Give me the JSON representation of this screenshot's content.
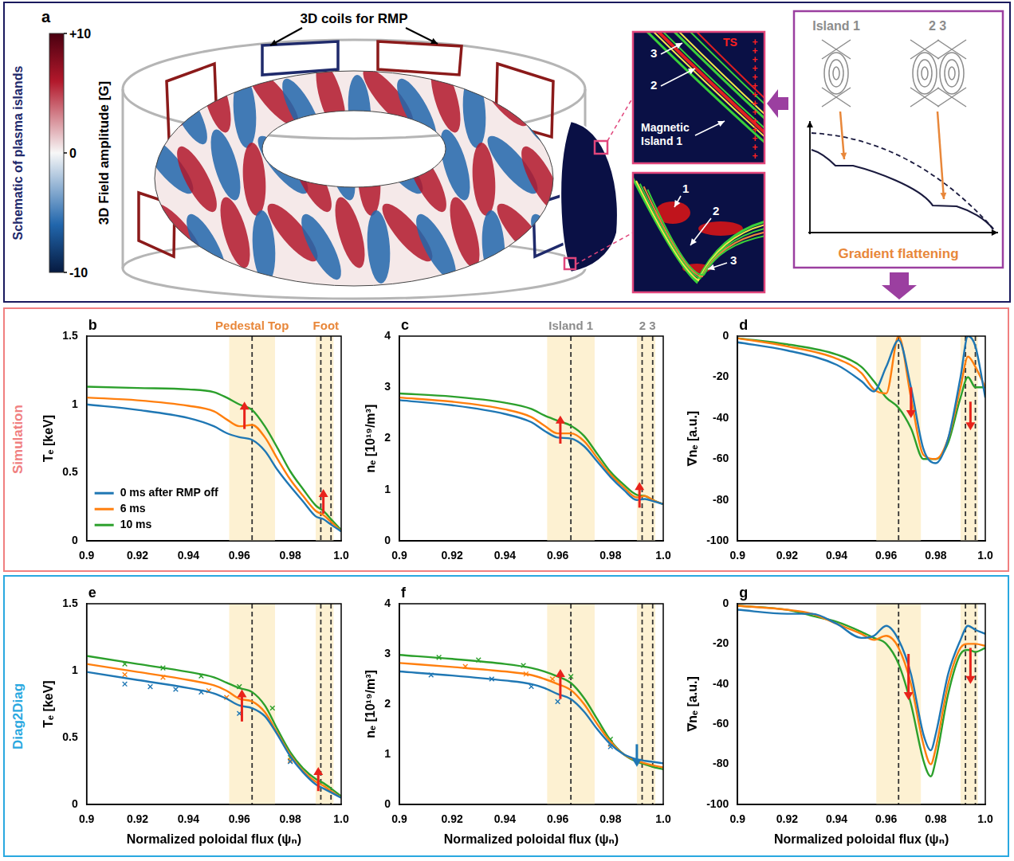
{
  "schematic": {
    "row_label": "Schematic of plasma islands",
    "row_color": "#1f2a6b",
    "letter": "a",
    "colorbar": {
      "title": "3D Field amplitude [G]",
      "range": [
        -10,
        10
      ],
      "ticks": [
        {
          "value": 10,
          "label": "+10"
        },
        0,
        -10
      ]
    },
    "coils_label": "3D coils for RMP",
    "inset_top": {
      "labels": [
        "3",
        "2"
      ],
      "island_label": "Magnetic Island 1",
      "ts_label": "TS"
    },
    "inset_bottom": {
      "labels": [
        "1",
        "2",
        "3"
      ]
    },
    "concept": {
      "island_labels": [
        "Island 1",
        "2 3"
      ],
      "caption": "Gradient flattening"
    }
  },
  "rows": [
    {
      "id": "simulation",
      "label": "Simulation",
      "color": "#f08080"
    },
    {
      "id": "diag2diag",
      "label": "Diag2Diag",
      "color": "#29a8e0"
    }
  ],
  "chart_data": [
    {
      "letter": "b",
      "row": "simulation",
      "type": "line",
      "ylabel": "Tₑ [keV]",
      "x": [
        0.9,
        0.92,
        0.94,
        0.95,
        0.955,
        0.96,
        0.965,
        0.97,
        0.975,
        0.98,
        0.985,
        0.99,
        0.993,
        0.996,
        1
      ],
      "xlim": [
        0.9,
        1
      ],
      "xticks": [
        0.9,
        0.92,
        0.94,
        0.96,
        0.98,
        {
          "value": 1,
          "label": "1.0"
        }
      ],
      "ylim": [
        0,
        1.5
      ],
      "yticks": [
        0,
        0.5,
        1,
        1.5
      ],
      "grid": false,
      "legend": "lower left",
      "series": [
        {
          "name": "0 ms after RMP off",
          "color": "#1f77b4",
          "values": [
            1.0,
            0.96,
            0.9,
            0.84,
            0.79,
            0.76,
            0.74,
            0.66,
            0.52,
            0.4,
            0.29,
            0.18,
            0.16,
            0.12,
            0.07
          ]
        },
        {
          "name": "6 ms",
          "color": "#ff7f0e",
          "values": [
            1.05,
            1.03,
            0.99,
            0.95,
            0.89,
            0.84,
            0.85,
            0.76,
            0.6,
            0.45,
            0.33,
            0.22,
            0.19,
            0.14,
            0.07
          ]
        },
        {
          "name": "10 ms",
          "color": "#2ca02c",
          "values": [
            1.13,
            1.12,
            1.11,
            1.09,
            1.05,
            1.0,
            0.96,
            0.84,
            0.68,
            0.51,
            0.38,
            0.26,
            0.22,
            0.16,
            0.08
          ]
        }
      ],
      "shaded": [
        [
          0.956,
          0.974
        ],
        [
          0.99,
          0.997
        ]
      ],
      "vlines": [
        0.965,
        0.992,
        0.996
      ],
      "top_labels": [
        {
          "text": "Pedestal Top",
          "x": 0.965,
          "color": "#e8873a"
        },
        {
          "text": "Foot",
          "x": 0.994,
          "color": "#e8873a"
        }
      ],
      "arrows": [
        {
          "x": 0.962,
          "from": 0.82,
          "to": 1.02,
          "color": "#e8231b"
        },
        {
          "x": 0.993,
          "from": 0.2,
          "to": 0.38,
          "color": "#e8231b"
        }
      ]
    },
    {
      "letter": "c",
      "row": "simulation",
      "type": "line",
      "ylabel": "nₑ [10¹⁹/m³]",
      "x": [
        0.9,
        0.92,
        0.94,
        0.95,
        0.955,
        0.96,
        0.965,
        0.97,
        0.975,
        0.98,
        0.985,
        0.99,
        0.993,
        0.996,
        1
      ],
      "xlim": [
        0.9,
        1
      ],
      "xticks": [
        0.9,
        0.92,
        0.94,
        0.96,
        0.98,
        {
          "value": 1,
          "label": "1.0"
        }
      ],
      "ylim": [
        0,
        4
      ],
      "yticks": [
        0,
        1,
        2,
        3,
        4
      ],
      "grid": false,
      "series": [
        {
          "color": "#1f77b4",
          "values": [
            2.75,
            2.65,
            2.48,
            2.32,
            2.15,
            2.02,
            2.0,
            1.85,
            1.55,
            1.25,
            1.0,
            0.8,
            0.82,
            0.78,
            0.72
          ]
        },
        {
          "color": "#ff7f0e",
          "values": [
            2.8,
            2.72,
            2.57,
            2.42,
            2.25,
            2.1,
            2.1,
            1.95,
            1.62,
            1.3,
            1.05,
            0.85,
            0.88,
            0.8,
            0.72
          ]
        },
        {
          "color": "#2ca02c",
          "values": [
            2.88,
            2.82,
            2.7,
            2.58,
            2.45,
            2.35,
            2.25,
            2.05,
            1.7,
            1.35,
            1.1,
            0.9,
            0.88,
            0.8,
            0.72
          ]
        }
      ],
      "shaded": [
        [
          0.956,
          0.974
        ],
        [
          0.99,
          0.997
        ]
      ],
      "vlines": [
        0.965,
        0.992,
        0.996
      ],
      "top_labels": [
        {
          "text": "Island 1",
          "x": 0.965,
          "color": "#8c8c8c"
        },
        {
          "text": "2 3",
          "x": 0.994,
          "color": "#8c8c8c"
        }
      ],
      "arrows": [
        {
          "x": 0.961,
          "from": 1.9,
          "to": 2.45,
          "color": "#e8231b"
        },
        {
          "x": 0.991,
          "from": 0.65,
          "to": 1.15,
          "color": "#e8231b"
        }
      ]
    },
    {
      "letter": "d",
      "row": "simulation",
      "type": "line",
      "ylabel": "∇nₑ [a.u.]",
      "x": [
        0.9,
        0.92,
        0.94,
        0.95,
        0.955,
        0.96,
        0.965,
        0.97,
        0.975,
        0.98,
        0.985,
        0.99,
        0.993,
        0.996,
        1
      ],
      "xlim": [
        0.9,
        1
      ],
      "xticks": [
        0.9,
        0.92,
        0.94,
        0.96,
        0.98,
        {
          "value": 1,
          "label": "1.0"
        }
      ],
      "ylim": [
        -100,
        0
      ],
      "yticks": [
        -100,
        -80,
        -60,
        -40,
        -20,
        0
      ],
      "grid": false,
      "series": [
        {
          "color": "#1f77b4",
          "values": [
            -3,
            -7,
            -14,
            -22,
            -27,
            -15,
            -2,
            -25,
            -55,
            -62,
            -50,
            -20,
            0,
            -5,
            -30
          ]
        },
        {
          "color": "#ff7f0e",
          "values": [
            -1,
            -5,
            -11,
            -18,
            -26,
            -28,
            0,
            -30,
            -58,
            -60,
            -50,
            -25,
            -10,
            -15,
            -25
          ]
        },
        {
          "color": "#2ca02c",
          "values": [
            -1,
            -4,
            -9,
            -15,
            -22,
            -30,
            -35,
            -45,
            -60,
            -60,
            -52,
            -30,
            -20,
            -25,
            -25
          ]
        }
      ],
      "shaded": [
        [
          0.956,
          0.974
        ],
        [
          0.99,
          0.997
        ]
      ],
      "vlines": [
        0.965,
        0.992,
        0.996
      ],
      "arrows": [
        {
          "x": 0.97,
          "from": -25,
          "to": -40,
          "color": "#e8231b"
        },
        {
          "x": 0.994,
          "from": -32,
          "to": -46,
          "color": "#e8231b"
        }
      ]
    },
    {
      "letter": "e",
      "row": "diag2diag",
      "type": "line",
      "ylabel": "Tₑ [keV]",
      "xlabel": "Normalized poloidal flux (ψₙ)",
      "x": [
        0.9,
        0.92,
        0.94,
        0.95,
        0.955,
        0.96,
        0.965,
        0.97,
        0.975,
        0.98,
        0.985,
        0.99,
        0.993,
        0.996,
        1
      ],
      "xlim": [
        0.9,
        1
      ],
      "xticks": [
        0.9,
        0.92,
        0.94,
        0.96,
        0.98,
        {
          "value": 1,
          "label": "1.0"
        }
      ],
      "ylim": [
        0,
        1.5
      ],
      "yticks": [
        0,
        0.5,
        1,
        1.5
      ],
      "grid": false,
      "series": [
        {
          "color": "#1f77b4",
          "values": [
            0.99,
            0.93,
            0.87,
            0.83,
            0.79,
            0.74,
            0.72,
            0.66,
            0.52,
            0.36,
            0.24,
            0.15,
            0.12,
            0.09,
            0.05
          ],
          "measured": {
            "marker": "x",
            "x": [
              0.915,
              0.925,
              0.935,
              0.945,
              0.96,
              0.98
            ],
            "y": [
              0.9,
              0.88,
              0.86,
              0.84,
              0.68,
              0.32
            ]
          }
        },
        {
          "color": "#ff7f0e",
          "values": [
            1.05,
            0.99,
            0.93,
            0.89,
            0.85,
            0.79,
            0.77,
            0.69,
            0.53,
            0.37,
            0.25,
            0.17,
            0.14,
            0.1,
            0.05
          ],
          "measured": {
            "marker": "x",
            "x": [
              0.915,
              0.93,
              0.948,
              0.955,
              0.98
            ],
            "y": [
              0.97,
              0.95,
              0.85,
              0.8,
              0.33
            ]
          }
        },
        {
          "color": "#2ca02c",
          "values": [
            1.11,
            1.05,
            0.99,
            0.95,
            0.91,
            0.87,
            0.84,
            0.74,
            0.56,
            0.39,
            0.27,
            0.19,
            0.16,
            0.12,
            0.06
          ],
          "measured": {
            "marker": "x",
            "x": [
              0.915,
              0.93,
              0.945,
              0.96,
              0.973,
              0.98
            ],
            "y": [
              1.05,
              1.02,
              0.96,
              0.88,
              0.72,
              0.35
            ]
          }
        }
      ],
      "shaded": [
        [
          0.956,
          0.974
        ],
        [
          0.99,
          0.997
        ]
      ],
      "vlines": [
        0.965,
        0.992,
        0.996
      ],
      "arrows": [
        {
          "x": 0.961,
          "from": 0.62,
          "to": 0.86,
          "color": "#e8231b"
        },
        {
          "x": 0.991,
          "from": 0.1,
          "to": 0.28,
          "color": "#e8231b"
        }
      ]
    },
    {
      "letter": "f",
      "row": "diag2diag",
      "type": "line",
      "ylabel": "nₑ [10¹⁹/m³]",
      "xlabel": "Normalized poloidal flux (ψₙ)",
      "x": [
        0.9,
        0.92,
        0.94,
        0.95,
        0.955,
        0.96,
        0.965,
        0.97,
        0.975,
        0.98,
        0.985,
        0.99,
        0.993,
        0.996,
        1
      ],
      "xlim": [
        0.9,
        1
      ],
      "xticks": [
        0.9,
        0.92,
        0.94,
        0.96,
        0.98,
        {
          "value": 1,
          "label": "1.0"
        }
      ],
      "ylim": [
        0,
        4
      ],
      "yticks": [
        0,
        1,
        2,
        3,
        4
      ],
      "grid": false,
      "series": [
        {
          "color": "#1f77b4",
          "values": [
            2.65,
            2.57,
            2.47,
            2.4,
            2.32,
            2.2,
            2.1,
            1.85,
            1.5,
            1.2,
            1.0,
            0.9,
            0.87,
            0.85,
            0.82
          ],
          "measured": {
            "marker": "x",
            "x": [
              0.912,
              0.935,
              0.95,
              0.96,
              0.98
            ],
            "y": [
              2.58,
              2.5,
              2.35,
              2.05,
              1.15
            ]
          }
        },
        {
          "color": "#ff7f0e",
          "values": [
            2.82,
            2.74,
            2.65,
            2.58,
            2.5,
            2.4,
            2.28,
            2.0,
            1.6,
            1.25,
            1.0,
            0.87,
            0.82,
            0.78,
            0.74
          ],
          "measured": {
            "marker": "x",
            "x": [
              0.925,
              0.948,
              0.958,
              0.98
            ],
            "y": [
              2.75,
              2.6,
              2.5,
              1.2
            ]
          }
        },
        {
          "color": "#2ca02c",
          "values": [
            2.98,
            2.9,
            2.8,
            2.72,
            2.65,
            2.55,
            2.42,
            2.12,
            1.7,
            1.28,
            1.0,
            0.85,
            0.8,
            0.75,
            0.7
          ],
          "measured": {
            "marker": "x",
            "x": [
              0.915,
              0.93,
              0.947,
              0.965,
              0.98
            ],
            "y": [
              2.93,
              2.88,
              2.77,
              2.55,
              1.3
            ]
          }
        }
      ],
      "shaded": [
        [
          0.956,
          0.974
        ],
        [
          0.99,
          0.997
        ]
      ],
      "vlines": [
        0.965,
        0.992,
        0.996
      ],
      "arrows": [
        {
          "x": 0.961,
          "from": 2.1,
          "to": 2.7,
          "color": "#e8231b"
        },
        {
          "x": 0.99,
          "from": 1.2,
          "to": 0.75,
          "color": "#1f77b4"
        }
      ]
    },
    {
      "letter": "g",
      "row": "diag2diag",
      "type": "line",
      "ylabel": "∇nₑ [a.u.]",
      "xlabel": "Normalized poloidal flux (ψₙ)",
      "x": [
        0.9,
        0.92,
        0.93,
        0.94,
        0.95,
        0.955,
        0.96,
        0.965,
        0.97,
        0.975,
        0.978,
        0.98,
        0.985,
        0.99,
        0.993,
        0.996,
        1
      ],
      "xlim": [
        0.9,
        1
      ],
      "xticks": [
        0.9,
        0.92,
        0.94,
        0.96,
        0.98,
        {
          "value": 1,
          "label": "1.0"
        }
      ],
      "ylim": [
        -100,
        0
      ],
      "yticks": [
        -100,
        -80,
        -60,
        -40,
        -20,
        0
      ],
      "grid": false,
      "series": [
        {
          "color": "#1f77b4",
          "values": [
            -3,
            -5,
            -5,
            -10,
            -17,
            -16,
            -11,
            -18,
            -35,
            -65,
            -73,
            -65,
            -35,
            -18,
            -11,
            -13,
            -15
          ]
        },
        {
          "color": "#ff7f0e",
          "values": [
            -1,
            -3,
            -5,
            -10,
            -15,
            -18,
            -16,
            -22,
            -40,
            -70,
            -80,
            -72,
            -40,
            -22,
            -20,
            -20,
            -21
          ]
        },
        {
          "color": "#2ca02c",
          "values": [
            -1,
            -3,
            -6,
            -9,
            -14,
            -17,
            -20,
            -30,
            -50,
            -78,
            -86,
            -78,
            -45,
            -25,
            -23,
            -24,
            -22
          ]
        }
      ],
      "shaded": [
        [
          0.956,
          0.974
        ],
        [
          0.99,
          0.997
        ]
      ],
      "vlines": [
        0.965,
        0.992,
        0.996
      ],
      "arrows": [
        {
          "x": 0.969,
          "from": -25,
          "to": -48,
          "color": "#e8231b"
        },
        {
          "x": 0.994,
          "from": -22,
          "to": -40,
          "color": "#e8231b"
        }
      ]
    }
  ]
}
